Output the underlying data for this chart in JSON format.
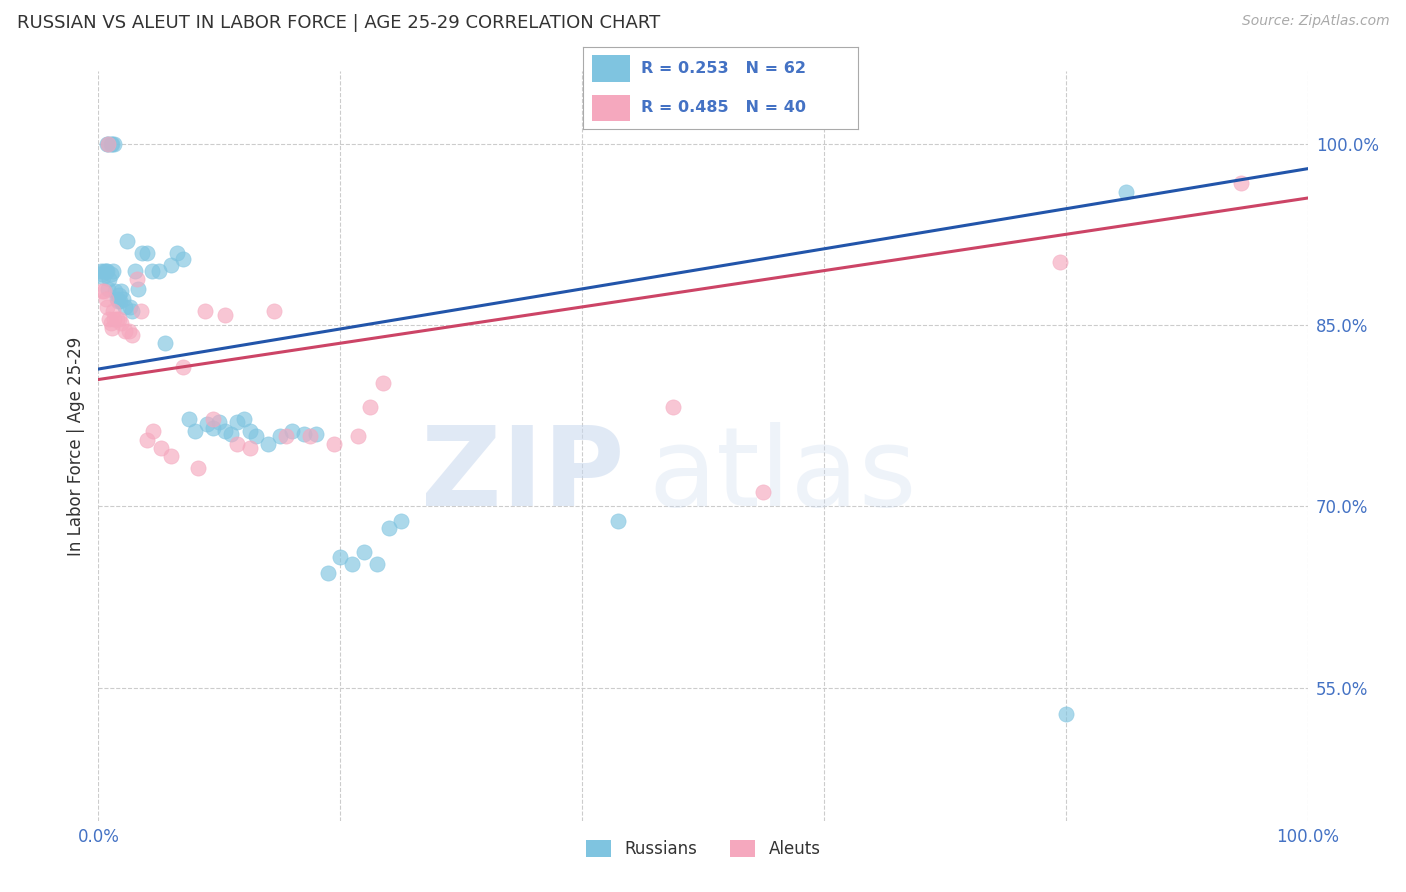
{
  "title": "RUSSIAN VS ALEUT IN LABOR FORCE | AGE 25-29 CORRELATION CHART",
  "source": "Source: ZipAtlas.com",
  "ylabel": "In Labor Force | Age 25-29",
  "r_russian": 0.253,
  "n_russian": 62,
  "r_aleut": 0.485,
  "n_aleut": 40,
  "russian_color": "#7fc4e0",
  "aleut_color": "#f5a8be",
  "russian_line_color": "#2255aa",
  "aleut_line_color": "#cc4466",
  "background_color": "#ffffff",
  "grid_color": "#cccccc",
  "title_color": "#333333",
  "axis_tick_color": "#4472c4",
  "xlim": [
    0.0,
    1.0
  ],
  "ylim": [
    0.44,
    1.06
  ],
  "ytick_positions": [
    0.55,
    0.7,
    0.85,
    1.0
  ],
  "ytick_labels": [
    "55.0%",
    "70.0%",
    "85.0%",
    "100.0%"
  ],
  "russian_x": [
    0.002,
    0.003,
    0.004,
    0.005,
    0.006,
    0.007,
    0.007,
    0.008,
    0.008,
    0.009,
    0.01,
    0.01,
    0.011,
    0.012,
    0.013,
    0.014,
    0.015,
    0.016,
    0.017,
    0.018,
    0.019,
    0.02,
    0.022,
    0.024,
    0.026,
    0.028,
    0.03,
    0.033,
    0.036,
    0.04,
    0.044,
    0.05,
    0.055,
    0.06,
    0.065,
    0.07,
    0.075,
    0.08,
    0.09,
    0.095,
    0.1,
    0.105,
    0.11,
    0.115,
    0.12,
    0.125,
    0.13,
    0.14,
    0.15,
    0.16,
    0.17,
    0.18,
    0.19,
    0.2,
    0.21,
    0.22,
    0.23,
    0.24,
    0.25,
    0.43,
    0.8,
    0.85
  ],
  "russian_y": [
    0.895,
    0.892,
    0.89,
    0.895,
    0.895,
    0.895,
    1.0,
    0.88,
    1.0,
    0.888,
    1.0,
    0.892,
    1.0,
    0.895,
    1.0,
    0.878,
    0.872,
    0.87,
    0.875,
    0.87,
    0.878,
    0.872,
    0.865,
    0.92,
    0.865,
    0.862,
    0.895,
    0.88,
    0.91,
    0.91,
    0.895,
    0.895,
    0.835,
    0.9,
    0.91,
    0.905,
    0.772,
    0.762,
    0.768,
    0.765,
    0.77,
    0.762,
    0.76,
    0.77,
    0.772,
    0.762,
    0.758,
    0.752,
    0.758,
    0.762,
    0.76,
    0.76,
    0.645,
    0.658,
    0.652,
    0.662,
    0.652,
    0.682,
    0.688,
    0.688,
    0.528,
    0.96
  ],
  "aleut_x": [
    0.003,
    0.005,
    0.006,
    0.007,
    0.008,
    0.009,
    0.01,
    0.011,
    0.012,
    0.013,
    0.015,
    0.017,
    0.019,
    0.022,
    0.025,
    0.028,
    0.032,
    0.035,
    0.04,
    0.045,
    0.052,
    0.06,
    0.07,
    0.082,
    0.088,
    0.095,
    0.105,
    0.115,
    0.125,
    0.145,
    0.155,
    0.175,
    0.195,
    0.215,
    0.225,
    0.235,
    0.475,
    0.55,
    0.795,
    0.945
  ],
  "aleut_y": [
    0.878,
    0.878,
    0.872,
    0.865,
    1.0,
    0.855,
    0.852,
    0.848,
    0.862,
    0.855,
    0.855,
    0.855,
    0.852,
    0.845,
    0.845,
    0.842,
    0.888,
    0.862,
    0.755,
    0.762,
    0.748,
    0.742,
    0.815,
    0.732,
    0.862,
    0.772,
    0.858,
    0.752,
    0.748,
    0.862,
    0.758,
    0.758,
    0.752,
    0.758,
    0.782,
    0.802,
    0.782,
    0.712,
    0.902,
    0.968
  ],
  "figsize": [
    14.06,
    8.92
  ],
  "dpi": 100
}
